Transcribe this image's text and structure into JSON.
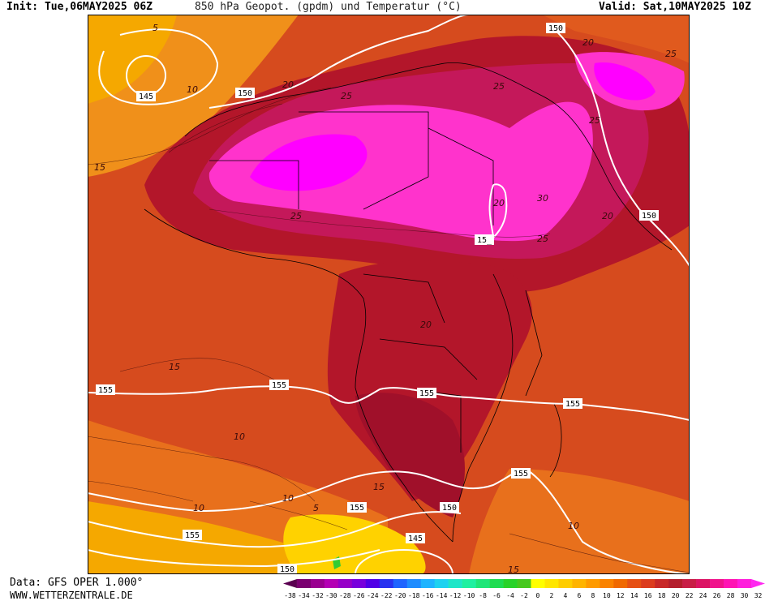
{
  "header": {
    "init": "Init: Tue,06MAY2025 06Z",
    "title": "850 hPa Geopot. (gpdm) und Temperatur (°C)",
    "valid": "Valid: Sat,10MAY2025 10Z"
  },
  "footer": {
    "data_source": "Data: GFS OPER 1.000°",
    "website": "WWW.WETTERZENTRALE.DE"
  },
  "colors": {
    "ocean_warm": "#d64b1e",
    "ocean_cool": "#e8701c",
    "hot_land": "#b3162a",
    "very_hot": "#c4185a",
    "extreme": "#ff33cc",
    "peak": "#ff00ff",
    "mild": "#f5a800",
    "cool": "#ffd200",
    "cold_green": "#33cc33",
    "contour": "#ffffff",
    "border": "#000000"
  },
  "geopotential_labels": [
    {
      "id": "g145a",
      "text": "145"
    },
    {
      "id": "g150a",
      "text": "150"
    },
    {
      "id": "g150b",
      "text": "150"
    },
    {
      "id": "g150c",
      "text": "150"
    },
    {
      "id": "g150d",
      "text": "15_"
    },
    {
      "id": "g155a",
      "text": "155"
    },
    {
      "id": "g155b",
      "text": "155"
    },
    {
      "id": "g155c",
      "text": "155"
    },
    {
      "id": "g155d",
      "text": "155"
    },
    {
      "id": "g155e",
      "text": "155"
    },
    {
      "id": "g155f",
      "text": "155"
    },
    {
      "id": "g155g",
      "text": "155"
    },
    {
      "id": "g150e",
      "text": "150"
    },
    {
      "id": "g145b",
      "text": "145"
    },
    {
      "id": "g150f",
      "text": "150"
    }
  ],
  "temperature_labels": [
    {
      "id": "t5a",
      "text": "5"
    },
    {
      "id": "t10a",
      "text": "10"
    },
    {
      "id": "t15a",
      "text": "15"
    },
    {
      "id": "t20a",
      "text": "20"
    },
    {
      "id": "t25a",
      "text": "25"
    },
    {
      "id": "t25b",
      "text": "25"
    },
    {
      "id": "t20b",
      "text": "20"
    },
    {
      "id": "t25c",
      "text": "25"
    },
    {
      "id": "t25d",
      "text": "25"
    },
    {
      "id": "t20c",
      "text": "20"
    },
    {
      "id": "t25e",
      "text": "25"
    },
    {
      "id": "t30a",
      "text": "30"
    },
    {
      "id": "t20d",
      "text": "20"
    },
    {
      "id": "t25f",
      "text": "25"
    },
    {
      "id": "t20e",
      "text": "20"
    },
    {
      "id": "t15b",
      "text": "15"
    },
    {
      "id": "t10b",
      "text": "10"
    },
    {
      "id": "t10c",
      "text": "10"
    },
    {
      "id": "t10d",
      "text": "10"
    },
    {
      "id": "t5b",
      "text": "5"
    },
    {
      "id": "t15c",
      "text": "15"
    },
    {
      "id": "t10e",
      "text": "10"
    },
    {
      "id": "t15d",
      "text": "15"
    }
  ],
  "scale": {
    "values": [
      "-38",
      "-34",
      "-32",
      "-30",
      "-28",
      "-26",
      "-24",
      "-22",
      "-20",
      "-18",
      "-16",
      "-14",
      "-12",
      "-10",
      "-8",
      "-6",
      "-4",
      "-2",
      "0",
      "2",
      "4",
      "6",
      "8",
      "10",
      "12",
      "14",
      "16",
      "18",
      "20",
      "22",
      "24",
      "26",
      "28",
      "30",
      "32"
    ],
    "colors": [
      "#5a0050",
      "#7a0070",
      "#9a0090",
      "#b400b4",
      "#9600c8",
      "#7800dc",
      "#5000e6",
      "#2832f0",
      "#1e64ff",
      "#1e8cff",
      "#1eb4ff",
      "#1ed2f0",
      "#1ee6c8",
      "#1ef0a0",
      "#1ee678",
      "#1edc50",
      "#28d228",
      "#46c81e",
      "#ffff00",
      "#ffe600",
      "#ffcd00",
      "#ffb400",
      "#ff9b00",
      "#fa8200",
      "#f06900",
      "#e65014",
      "#dc3c1e",
      "#c82828",
      "#b41e2d",
      "#c81e46",
      "#dc1464",
      "#f0148c",
      "#ff14b4",
      "#ff1edc",
      "#ff28f0"
    ]
  }
}
